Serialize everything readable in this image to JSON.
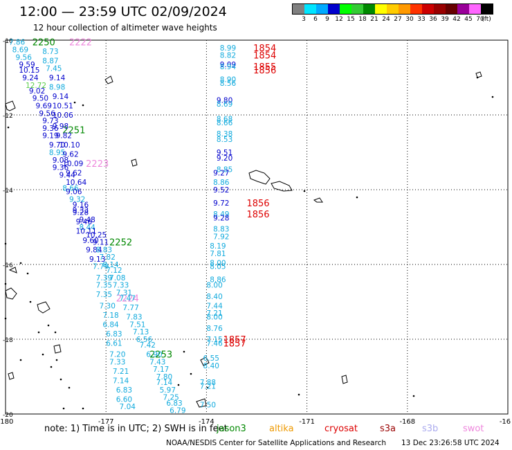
{
  "header": {
    "title": "12:00 — 23:59 UTC 02/09/2024",
    "subtitle": "12 hour collection of altimeter wave heights"
  },
  "legend": {
    "colors": [
      "#808080",
      "#00e5ff",
      "#00aaff",
      "#0000cd",
      "#00ff00",
      "#33cc33",
      "#008800",
      "#ffff00",
      "#ffcc00",
      "#ff9900",
      "#ff3300",
      "#cc0000",
      "#990000",
      "#660000",
      "#990099",
      "#ff66ff",
      "#000000"
    ],
    "labels": [
      "3",
      "6",
      "9",
      "12",
      "15",
      "18",
      "21",
      "24",
      "27",
      "30",
      "33",
      "36",
      "39",
      "42",
      "45",
      "70",
      "(ft)"
    ]
  },
  "axes": {
    "lon_ticks": [
      "-180",
      "-177",
      "-174",
      "-171",
      "-168",
      "-16"
    ],
    "lat_ticks": [
      "-10",
      "-12",
      "-14",
      "-16",
      "-18",
      "-20"
    ]
  },
  "colors": {
    "cyan": "#11aadd",
    "blue": "#0000cc",
    "green": "#008800",
    "lightgreen": "#55cc44",
    "red": "#dd0000",
    "pink": "#ee88dd",
    "orange": "#ee9900",
    "darkred": "#990000",
    "lavender": "#aaaaee"
  },
  "track_labels": [
    {
      "text": "2250",
      "lon": -179.2,
      "lat": -10.05,
      "color": "green"
    },
    {
      "text": "2222",
      "lon": -178.1,
      "lat": -10.05,
      "color": "pink"
    },
    {
      "text": "2251",
      "lon": -178.3,
      "lat": -12.4,
      "color": "green"
    },
    {
      "text": "2223",
      "lon": -177.6,
      "lat": -13.3,
      "color": "pink"
    },
    {
      "text": "2252",
      "lon": -176.9,
      "lat": -15.4,
      "color": "green"
    },
    {
      "text": "2224",
      "lon": -176.7,
      "lat": -16.9,
      "color": "pink"
    },
    {
      "text": "2253",
      "lon": -175.7,
      "lat": -18.4,
      "color": "green"
    },
    {
      "text": "1854",
      "lon": -172.6,
      "lat": -10.2,
      "color": "red"
    },
    {
      "text": "1854",
      "lon": -172.6,
      "lat": -10.4,
      "color": "red"
    },
    {
      "text": "1855",
      "lon": -172.6,
      "lat": -10.7,
      "color": "red"
    },
    {
      "text": "1856",
      "lon": -172.6,
      "lat": -10.8,
      "color": "red"
    },
    {
      "text": "1856",
      "lon": -172.8,
      "lat": -14.35,
      "color": "red"
    },
    {
      "text": "1856",
      "lon": -172.8,
      "lat": -14.65,
      "color": "red"
    },
    {
      "text": "1857",
      "lon": -173.5,
      "lat": -18.0,
      "color": "red"
    },
    {
      "text": "1857",
      "lon": -173.5,
      "lat": -18.1,
      "color": "red"
    }
  ],
  "wave_heights": [
    {
      "text": "7.86",
      "lon": -179.9,
      "lat": -10.05,
      "color": "cyan"
    },
    {
      "text": "8.69",
      "lon": -179.8,
      "lat": -10.25,
      "color": "cyan"
    },
    {
      "text": "8.73",
      "lon": -178.9,
      "lat": -10.3,
      "color": "cyan"
    },
    {
      "text": "9.56",
      "lon": -179.7,
      "lat": -10.45,
      "color": "cyan"
    },
    {
      "text": "8.87",
      "lon": -178.9,
      "lat": -10.55,
      "color": "cyan"
    },
    {
      "text": "9.59",
      "lon": -179.6,
      "lat": -10.65,
      "color": "blue"
    },
    {
      "text": "10.15",
      "lon": -179.6,
      "lat": -10.8,
      "color": "blue"
    },
    {
      "text": "7.45",
      "lon": -178.8,
      "lat": -10.75,
      "color": "cyan"
    },
    {
      "text": "9.24",
      "lon": -179.5,
      "lat": -11.0,
      "color": "blue"
    },
    {
      "text": "9.14",
      "lon": -178.7,
      "lat": -11.0,
      "color": "blue"
    },
    {
      "text": "12.72",
      "lon": -179.4,
      "lat": -11.2,
      "color": "lightgreen"
    },
    {
      "text": "8.98",
      "lon": -178.7,
      "lat": -11.25,
      "color": "cyan"
    },
    {
      "text": "9.02",
      "lon": -179.3,
      "lat": -11.35,
      "color": "blue"
    },
    {
      "text": "9.50",
      "lon": -179.2,
      "lat": -11.55,
      "color": "blue"
    },
    {
      "text": "9.14",
      "lon": -178.6,
      "lat": -11.5,
      "color": "blue"
    },
    {
      "text": "9.69",
      "lon": -179.1,
      "lat": -11.75,
      "color": "blue"
    },
    {
      "text": "10.51",
      "lon": -178.6,
      "lat": -11.75,
      "color": "blue"
    },
    {
      "text": "9.56",
      "lon": -179.0,
      "lat": -11.95,
      "color": "blue"
    },
    {
      "text": "10.06",
      "lon": -178.6,
      "lat": -12.0,
      "color": "blue"
    },
    {
      "text": "9.73",
      "lon": -178.9,
      "lat": -12.15,
      "color": "blue"
    },
    {
      "text": "9.98",
      "lon": -178.6,
      "lat": -12.3,
      "color": "blue"
    },
    {
      "text": "9.36",
      "lon": -178.9,
      "lat": -12.35,
      "color": "blue"
    },
    {
      "text": "9.19",
      "lon": -178.9,
      "lat": -12.55,
      "color": "blue"
    },
    {
      "text": "9.82",
      "lon": -178.5,
      "lat": -12.55,
      "color": "blue"
    },
    {
      "text": "9.70",
      "lon": -178.7,
      "lat": -12.8,
      "color": "blue"
    },
    {
      "text": "10.10",
      "lon": -178.4,
      "lat": -12.8,
      "color": "blue"
    },
    {
      "text": "8.95",
      "lon": -178.7,
      "lat": -13.0,
      "color": "cyan"
    },
    {
      "text": "9.62",
      "lon": -178.3,
      "lat": -13.05,
      "color": "blue"
    },
    {
      "text": "9.08",
      "lon": -178.6,
      "lat": -13.2,
      "color": "blue"
    },
    {
      "text": "10.09",
      "lon": -178.3,
      "lat": -13.3,
      "color": "blue"
    },
    {
      "text": "9.36",
      "lon": -178.6,
      "lat": -13.4,
      "color": "blue"
    },
    {
      "text": "9.62",
      "lon": -178.2,
      "lat": -13.55,
      "color": "blue"
    },
    {
      "text": "9.44",
      "lon": -178.4,
      "lat": -13.6,
      "color": "blue"
    },
    {
      "text": "10.64",
      "lon": -178.2,
      "lat": -13.8,
      "color": "blue"
    },
    {
      "text": "8.66",
      "lon": -178.3,
      "lat": -13.95,
      "color": "cyan"
    },
    {
      "text": "9.06",
      "lon": -178.2,
      "lat": -14.05,
      "color": "blue"
    },
    {
      "text": "9.32",
      "lon": -178.1,
      "lat": -14.25,
      "color": "cyan"
    },
    {
      "text": "9.16",
      "lon": -178.0,
      "lat": -14.4,
      "color": "blue"
    },
    {
      "text": "9.33",
      "lon": -178.0,
      "lat": -14.55,
      "color": "blue"
    },
    {
      "text": "9.28",
      "lon": -178.0,
      "lat": -14.6,
      "color": "blue"
    },
    {
      "text": "9.48",
      "lon": -177.8,
      "lat": -14.8,
      "color": "blue"
    },
    {
      "text": "9.46",
      "lon": -177.9,
      "lat": -14.85,
      "color": "blue"
    },
    {
      "text": "8.44",
      "lon": -177.8,
      "lat": -15.0,
      "color": "cyan"
    },
    {
      "text": "10.25",
      "lon": -177.6,
      "lat": -15.2,
      "color": "blue"
    },
    {
      "text": "10.11",
      "lon": -177.9,
      "lat": -15.1,
      "color": "blue"
    },
    {
      "text": "9.60",
      "lon": -177.7,
      "lat": -15.35,
      "color": "blue"
    },
    {
      "text": "9.11",
      "lon": -177.4,
      "lat": -15.4,
      "color": "blue"
    },
    {
      "text": "9.84",
      "lon": -177.6,
      "lat": -15.6,
      "color": "blue"
    },
    {
      "text": "8.83",
      "lon": -177.3,
      "lat": -15.6,
      "color": "cyan"
    },
    {
      "text": "9.13",
      "lon": -177.5,
      "lat": -15.85,
      "color": "blue"
    },
    {
      "text": "7.82",
      "lon": -177.2,
      "lat": -15.8,
      "color": "cyan"
    },
    {
      "text": "8.14",
      "lon": -177.1,
      "lat": -16.0,
      "color": "cyan"
    },
    {
      "text": "7.79",
      "lon": -177.4,
      "lat": -16.05,
      "color": "cyan"
    },
    {
      "text": "7.12",
      "lon": -177.0,
      "lat": -16.15,
      "color": "cyan"
    },
    {
      "text": "7.39",
      "lon": -177.3,
      "lat": -16.35,
      "color": "cyan"
    },
    {
      "text": "7.08",
      "lon": -176.9,
      "lat": -16.35,
      "color": "cyan"
    },
    {
      "text": "7.35",
      "lon": -177.3,
      "lat": -16.55,
      "color": "cyan"
    },
    {
      "text": "7.33",
      "lon": -176.8,
      "lat": -16.55,
      "color": "cyan"
    },
    {
      "text": "7.31",
      "lon": -176.7,
      "lat": -16.75,
      "color": "cyan"
    },
    {
      "text": "7.35",
      "lon": -177.3,
      "lat": -16.8,
      "color": "cyan"
    },
    {
      "text": "7.47",
      "lon": -176.6,
      "lat": -16.9,
      "color": "cyan"
    },
    {
      "text": "7.30",
      "lon": -177.2,
      "lat": -17.1,
      "color": "cyan"
    },
    {
      "text": "7.77",
      "lon": -176.5,
      "lat": -17.15,
      "color": "cyan"
    },
    {
      "text": "7.18",
      "lon": -177.1,
      "lat": -17.35,
      "color": "cyan"
    },
    {
      "text": "7.83",
      "lon": -176.4,
      "lat": -17.4,
      "color": "cyan"
    },
    {
      "text": "6.84",
      "lon": -177.1,
      "lat": -17.6,
      "color": "cyan"
    },
    {
      "text": "7.51",
      "lon": -176.3,
      "lat": -17.6,
      "color": "cyan"
    },
    {
      "text": "6.83",
      "lon": -177.0,
      "lat": -17.85,
      "color": "cyan"
    },
    {
      "text": "7.13",
      "lon": -176.2,
      "lat": -17.8,
      "color": "cyan"
    },
    {
      "text": "6.56",
      "lon": -176.1,
      "lat": -18.0,
      "color": "cyan"
    },
    {
      "text": "6.61",
      "lon": -177.0,
      "lat": -18.1,
      "color": "cyan"
    },
    {
      "text": "7.42",
      "lon": -176.0,
      "lat": -18.15,
      "color": "cyan"
    },
    {
      "text": "7.20",
      "lon": -176.9,
      "lat": -18.4,
      "color": "cyan"
    },
    {
      "text": "6.90",
      "lon": -175.8,
      "lat": -18.4,
      "color": "cyan"
    },
    {
      "text": "7.33",
      "lon": -176.9,
      "lat": -18.6,
      "color": "cyan"
    },
    {
      "text": "7.43",
      "lon": -175.7,
      "lat": -18.6,
      "color": "cyan"
    },
    {
      "text": "7.21",
      "lon": -176.8,
      "lat": -18.85,
      "color": "cyan"
    },
    {
      "text": "7.17",
      "lon": -175.6,
      "lat": -18.8,
      "color": "cyan"
    },
    {
      "text": "7.80",
      "lon": -175.5,
      "lat": -19.0,
      "color": "cyan"
    },
    {
      "text": "7.14",
      "lon": -176.8,
      "lat": -19.1,
      "color": "cyan"
    },
    {
      "text": "7.14",
      "lon": -175.5,
      "lat": -19.15,
      "color": "cyan"
    },
    {
      "text": "6.83",
      "lon": -176.7,
      "lat": -19.35,
      "color": "cyan"
    },
    {
      "text": "5.97",
      "lon": -175.4,
      "lat": -19.35,
      "color": "cyan"
    },
    {
      "text": "6.60",
      "lon": -176.7,
      "lat": -19.6,
      "color": "cyan"
    },
    {
      "text": "7.25",
      "lon": -175.3,
      "lat": -19.55,
      "color": "cyan"
    },
    {
      "text": "7.04",
      "lon": -176.6,
      "lat": -19.8,
      "color": "cyan"
    },
    {
      "text": "6.83",
      "lon": -175.2,
      "lat": -19.7,
      "color": "cyan"
    },
    {
      "text": "6.79",
      "lon": -175.1,
      "lat": -19.9,
      "color": "cyan"
    },
    {
      "text": "8.99",
      "lon": -173.6,
      "lat": -10.2,
      "color": "cyan"
    },
    {
      "text": "8.82",
      "lon": -173.6,
      "lat": -10.4,
      "color": "cyan"
    },
    {
      "text": "9.09",
      "lon": -173.6,
      "lat": -10.65,
      "color": "blue"
    },
    {
      "text": "8.94",
      "lon": -173.6,
      "lat": -10.7,
      "color": "cyan"
    },
    {
      "text": "8.90",
      "lon": -173.6,
      "lat": -11.05,
      "color": "cyan"
    },
    {
      "text": "8.56",
      "lon": -173.6,
      "lat": -11.15,
      "color": "cyan"
    },
    {
      "text": "9.80",
      "lon": -173.7,
      "lat": -11.6,
      "color": "blue"
    },
    {
      "text": "8.69",
      "lon": -173.7,
      "lat": -11.7,
      "color": "cyan"
    },
    {
      "text": "8.68",
      "lon": -173.7,
      "lat": -12.1,
      "color": "cyan"
    },
    {
      "text": "8.66",
      "lon": -173.7,
      "lat": -12.2,
      "color": "cyan"
    },
    {
      "text": "8.38",
      "lon": -173.7,
      "lat": -12.5,
      "color": "cyan"
    },
    {
      "text": "8.53",
      "lon": -173.7,
      "lat": -12.65,
      "color": "cyan"
    },
    {
      "text": "9.51",
      "lon": -173.7,
      "lat": -13.0,
      "color": "blue"
    },
    {
      "text": "9.20",
      "lon": -173.7,
      "lat": -13.15,
      "color": "blue"
    },
    {
      "text": "8.85",
      "lon": -173.7,
      "lat": -13.45,
      "color": "cyan"
    },
    {
      "text": "9.27",
      "lon": -173.8,
      "lat": -13.55,
      "color": "blue"
    },
    {
      "text": "8.86",
      "lon": -173.8,
      "lat": -13.8,
      "color": "cyan"
    },
    {
      "text": "9.52",
      "lon": -173.8,
      "lat": -14.0,
      "color": "blue"
    },
    {
      "text": "9.72",
      "lon": -173.8,
      "lat": -14.35,
      "color": "blue"
    },
    {
      "text": "8.49",
      "lon": -173.8,
      "lat": -14.65,
      "color": "cyan"
    },
    {
      "text": "9.28",
      "lon": -173.8,
      "lat": -14.75,
      "color": "blue"
    },
    {
      "text": "8.83",
      "lon": -173.8,
      "lat": -15.05,
      "color": "cyan"
    },
    {
      "text": "7.92",
      "lon": -173.8,
      "lat": -15.25,
      "color": "cyan"
    },
    {
      "text": "8.19",
      "lon": -173.9,
      "lat": -15.5,
      "color": "cyan"
    },
    {
      "text": "7.81",
      "lon": -173.9,
      "lat": -15.7,
      "color": "cyan"
    },
    {
      "text": "8.00",
      "lon": -173.9,
      "lat": -15.95,
      "color": "cyan"
    },
    {
      "text": "8.05",
      "lon": -173.9,
      "lat": -16.05,
      "color": "cyan"
    },
    {
      "text": "8.86",
      "lon": -173.9,
      "lat": -16.4,
      "color": "cyan"
    },
    {
      "text": "8.00",
      "lon": -174.0,
      "lat": -16.55,
      "color": "cyan"
    },
    {
      "text": "8.40",
      "lon": -174.0,
      "lat": -16.85,
      "color": "cyan"
    },
    {
      "text": "7.44",
      "lon": -174.0,
      "lat": -17.1,
      "color": "cyan"
    },
    {
      "text": "7.21",
      "lon": -174.0,
      "lat": -17.3,
      "color": "cyan"
    },
    {
      "text": "8.00",
      "lon": -174.0,
      "lat": -17.4,
      "color": "cyan"
    },
    {
      "text": "8.76",
      "lon": -174.0,
      "lat": -17.7,
      "color": "cyan"
    },
    {
      "text": "7.15",
      "lon": -174.0,
      "lat": -18.0,
      "color": "cyan"
    },
    {
      "text": "7.46",
      "lon": -174.0,
      "lat": -18.1,
      "color": "cyan"
    },
    {
      "text": "6.55",
      "lon": -174.1,
      "lat": -18.5,
      "color": "cyan"
    },
    {
      "text": "8.40",
      "lon": -174.1,
      "lat": -18.7,
      "color": "cyan"
    },
    {
      "text": "7.88",
      "lon": -174.2,
      "lat": -19.15,
      "color": "cyan"
    },
    {
      "text": "7.21",
      "lon": -174.2,
      "lat": -19.25,
      "color": "cyan"
    },
    {
      "text": "7.50",
      "lon": -174.2,
      "lat": -19.75,
      "color": "cyan"
    }
  ],
  "footer": {
    "note": "note:  1) Time is in UTC;  2) SWH is in feet",
    "credit": "NOAA/NESDIS Center for Satellite Applications and Research",
    "timestamp": "13 Dec 23:26:58 UTC 2024"
  },
  "satellites": [
    {
      "name": "jason3",
      "color": "green"
    },
    {
      "name": "altika",
      "color": "orange"
    },
    {
      "name": "cryosat",
      "color": "red"
    },
    {
      "name": "s3a",
      "color": "darkred"
    },
    {
      "name": "s3b",
      "color": "lavender"
    },
    {
      "name": "swot",
      "color": "pink"
    }
  ]
}
